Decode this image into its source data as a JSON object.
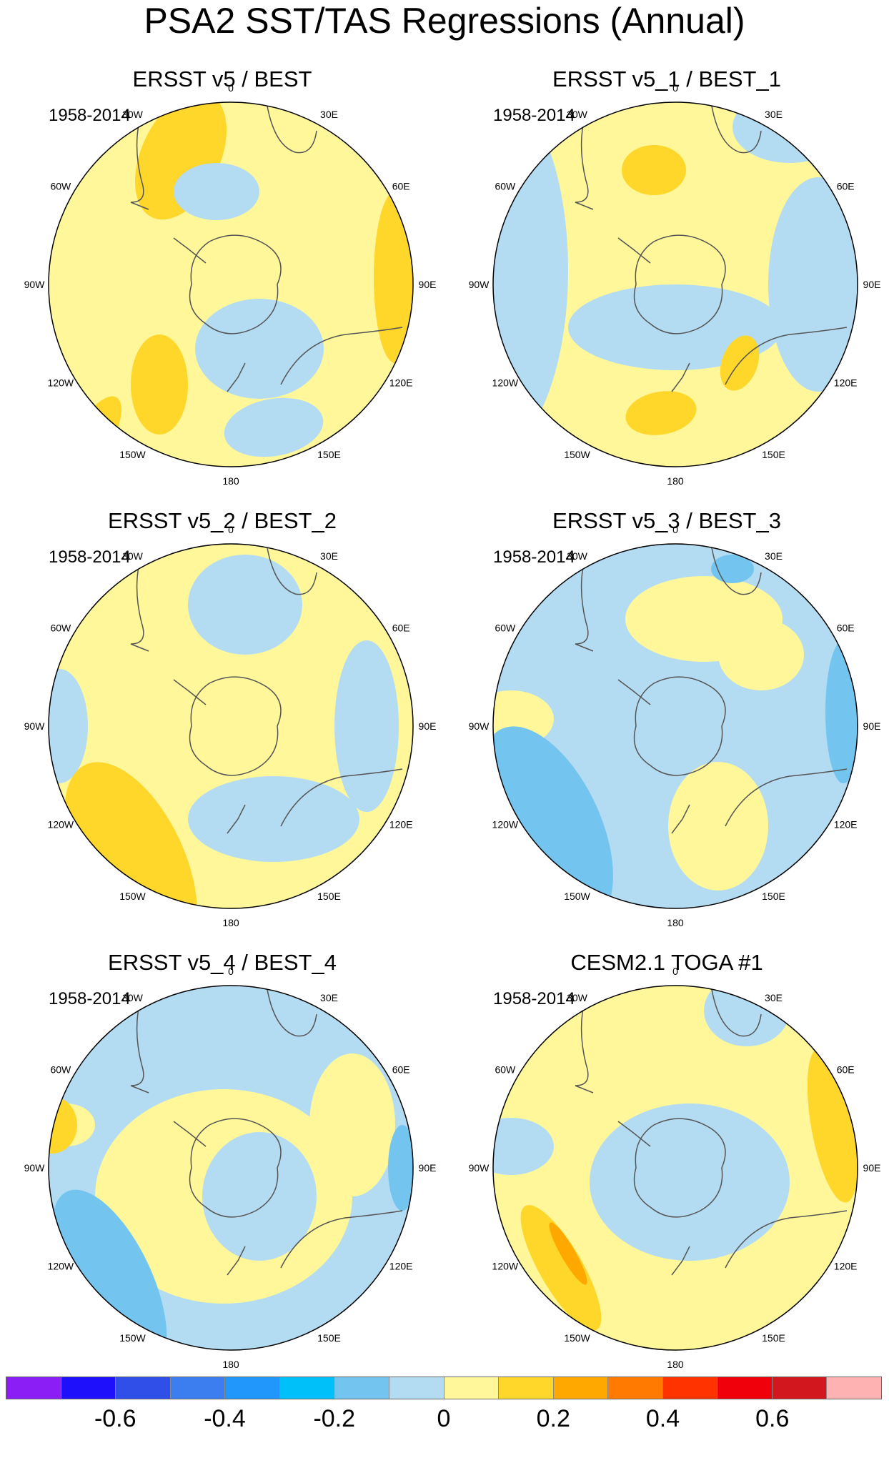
{
  "title": "PSA2 SST/TAS Regressions (Annual)",
  "palette": {
    "ocean_light_blue": "#b3dcf2",
    "light_yellow": "#fff799",
    "yellow_orange": "#ffd62a",
    "orange": "#ffa800",
    "mid_blue": "#73c5f0",
    "coast": "#555555"
  },
  "lon_labels": [
    "0",
    "30E",
    "60E",
    "90E",
    "120E",
    "150E",
    "180",
    "150W",
    "120W",
    "90W",
    "60W",
    "30W"
  ],
  "panels": [
    {
      "title": "ERSST v5 / BEST",
      "period": "1958-2014",
      "base": "light_yellow"
    },
    {
      "title": "ERSST v5_1 / BEST_1",
      "period": "1958-2014",
      "base": "light_yellow"
    },
    {
      "title": "ERSST v5_2 / BEST_2",
      "period": "1958-2014",
      "base": "light_yellow"
    },
    {
      "title": "ERSST v5_3 / BEST_3",
      "period": "1958-2014",
      "base": "ocean_light_blue"
    },
    {
      "title": "ERSST v5_4 / BEST_4",
      "period": "1958-2014",
      "base": "ocean_light_blue"
    },
    {
      "title": "CESM2.1 TOGA #1",
      "period": "1958-2014",
      "base": "light_yellow"
    }
  ],
  "colorbar": {
    "colors": [
      "#8b1ef5",
      "#1e10fb",
      "#2f4fe8",
      "#3c7ef0",
      "#2196fb",
      "#00c0f9",
      "#73c5f0",
      "#b3dcf2",
      "#fff799",
      "#ffd62a",
      "#ffa800",
      "#ff7a00",
      "#ff3300",
      "#f0000a",
      "#d2181e",
      "#ffb2b2"
    ],
    "labels": [
      "-0.6",
      "-0.4",
      "-0.2",
      "0",
      "0.2",
      "0.4",
      "0.6"
    ]
  }
}
